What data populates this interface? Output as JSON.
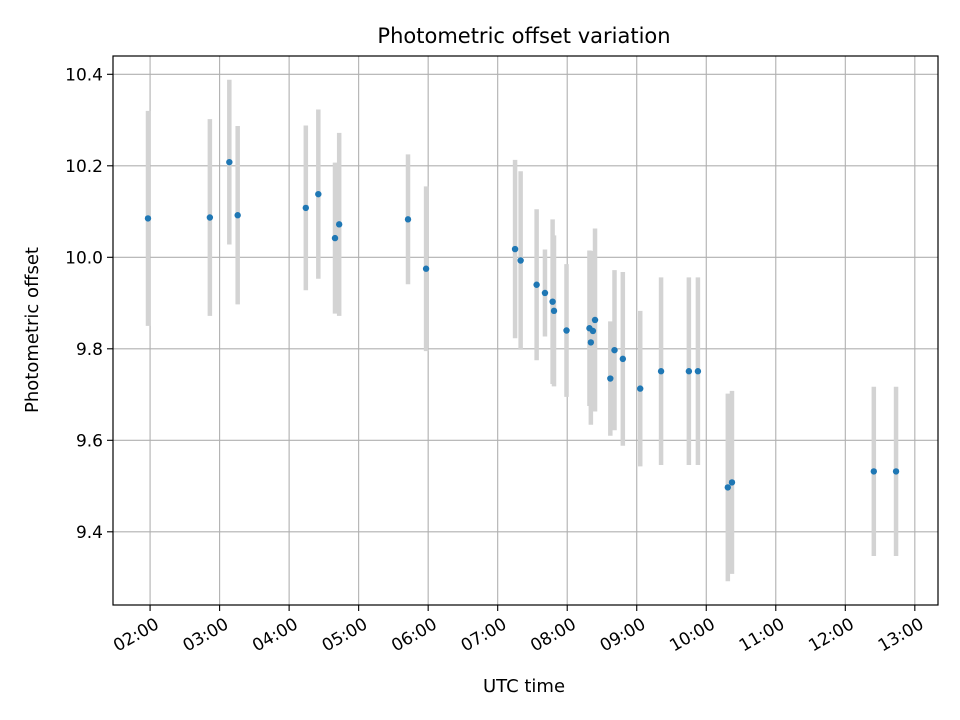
{
  "chart_data": {
    "type": "scatter",
    "title": "Photometric offset variation",
    "xlabel": "UTC time",
    "ylabel": "Photometric offset",
    "x_unit": "UTC hour",
    "xlim": [
      "01:28",
      "13:20"
    ],
    "ylim": [
      9.24,
      10.44
    ],
    "grid": true,
    "point_color": "#1f77b4",
    "errorbar_color": "#d3d3d3",
    "x_ticks": [
      {
        "label": "02:00",
        "hour": 2
      },
      {
        "label": "03:00",
        "hour": 3
      },
      {
        "label": "04:00",
        "hour": 4
      },
      {
        "label": "05:00",
        "hour": 5
      },
      {
        "label": "06:00",
        "hour": 6
      },
      {
        "label": "07:00",
        "hour": 7
      },
      {
        "label": "08:00",
        "hour": 8
      },
      {
        "label": "09:00",
        "hour": 9
      },
      {
        "label": "10:00",
        "hour": 10
      },
      {
        "label": "11:00",
        "hour": 11
      },
      {
        "label": "12:00",
        "hour": 12
      },
      {
        "label": "13:00",
        "hour": 13
      }
    ],
    "y_ticks": [
      {
        "label": "9.4",
        "value": 9.4
      },
      {
        "label": "9.6",
        "value": 9.6
      },
      {
        "label": "9.8",
        "value": 9.8
      },
      {
        "label": "10.0",
        "value": 10.0
      },
      {
        "label": "10.2",
        "value": 10.2
      },
      {
        "label": "10.4",
        "value": 10.4
      }
    ],
    "points": [
      {
        "x": 1.97,
        "y": 10.085,
        "err": 0.235
      },
      {
        "x": 2.86,
        "y": 10.087,
        "err": 0.215
      },
      {
        "x": 3.14,
        "y": 10.208,
        "err": 0.18
      },
      {
        "x": 3.26,
        "y": 10.092,
        "err": 0.195
      },
      {
        "x": 4.24,
        "y": 10.108,
        "err": 0.18
      },
      {
        "x": 4.42,
        "y": 10.138,
        "err": 0.185
      },
      {
        "x": 4.66,
        "y": 10.042,
        "err": 0.165
      },
      {
        "x": 4.72,
        "y": 10.072,
        "err": 0.2
      },
      {
        "x": 5.71,
        "y": 10.083,
        "err": 0.142
      },
      {
        "x": 5.97,
        "y": 9.975,
        "err": 0.18
      },
      {
        "x": 7.25,
        "y": 10.018,
        "err": 0.195
      },
      {
        "x": 7.33,
        "y": 9.993,
        "err": 0.195
      },
      {
        "x": 7.56,
        "y": 9.94,
        "err": 0.165
      },
      {
        "x": 7.68,
        "y": 9.922,
        "err": 0.095
      },
      {
        "x": 7.79,
        "y": 9.903,
        "err": 0.18
      },
      {
        "x": 7.81,
        "y": 9.883,
        "err": 0.165
      },
      {
        "x": 7.99,
        "y": 9.84,
        "err": 0.145
      },
      {
        "x": 8.32,
        "y": 9.845,
        "err": 0.17
      },
      {
        "x": 8.34,
        "y": 9.814,
        "err": 0.18
      },
      {
        "x": 8.37,
        "y": 9.839,
        "err": 0.175
      },
      {
        "x": 8.4,
        "y": 9.863,
        "err": 0.2
      },
      {
        "x": 8.62,
        "y": 9.735,
        "err": 0.125
      },
      {
        "x": 8.68,
        "y": 9.797,
        "err": 0.175
      },
      {
        "x": 8.8,
        "y": 9.778,
        "err": 0.19
      },
      {
        "x": 9.05,
        "y": 9.713,
        "err": 0.17
      },
      {
        "x": 9.35,
        "y": 9.751,
        "err": 0.205
      },
      {
        "x": 9.75,
        "y": 9.751,
        "err": 0.205
      },
      {
        "x": 9.88,
        "y": 9.751,
        "err": 0.205
      },
      {
        "x": 10.31,
        "y": 9.497,
        "err": 0.205
      },
      {
        "x": 10.37,
        "y": 9.508,
        "err": 0.2
      },
      {
        "x": 12.41,
        "y": 9.532,
        "err": 0.185
      },
      {
        "x": 12.73,
        "y": 9.532,
        "err": 0.185
      }
    ]
  }
}
